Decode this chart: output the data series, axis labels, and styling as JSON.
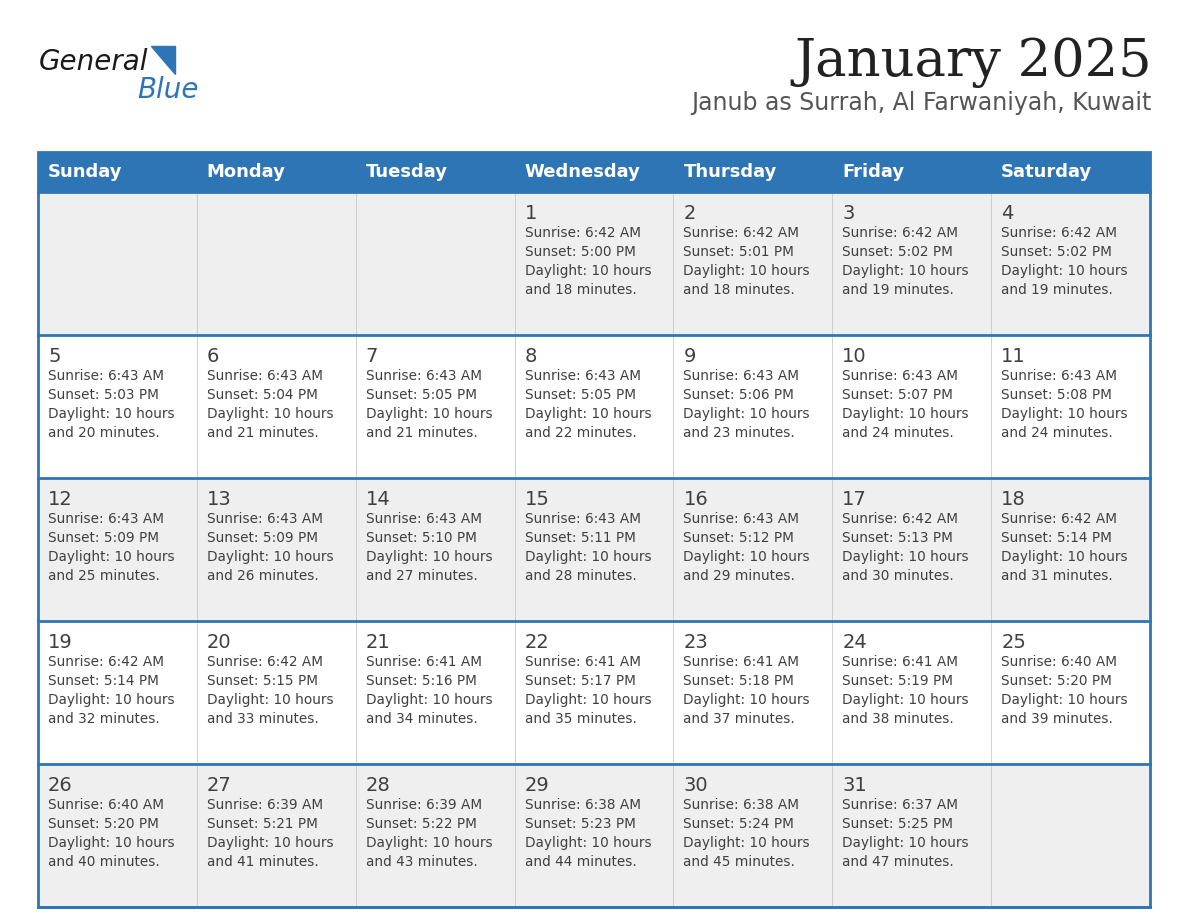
{
  "title": "January 2025",
  "subtitle": "Janub as Surrah, Al Farwaniyah, Kuwait",
  "days_of_week": [
    "Sunday",
    "Monday",
    "Tuesday",
    "Wednesday",
    "Thursday",
    "Friday",
    "Saturday"
  ],
  "header_bg": "#2E75B6",
  "header_text": "#FFFFFF",
  "cell_bg_light": "#EFEFEF",
  "cell_bg_white": "#FFFFFF",
  "row_line_color": "#2E75B6",
  "text_color": "#404040",
  "title_color": "#222222",
  "subtitle_color": "#555555",
  "logo_general_color": "#1a1a1a",
  "logo_blue_color": "#2E75B6",
  "weeks": [
    [
      {
        "day": null,
        "info": null
      },
      {
        "day": null,
        "info": null
      },
      {
        "day": null,
        "info": null
      },
      {
        "day": "1",
        "info": "Sunrise: 6:42 AM\nSunset: 5:00 PM\nDaylight: 10 hours\nand 18 minutes."
      },
      {
        "day": "2",
        "info": "Sunrise: 6:42 AM\nSunset: 5:01 PM\nDaylight: 10 hours\nand 18 minutes."
      },
      {
        "day": "3",
        "info": "Sunrise: 6:42 AM\nSunset: 5:02 PM\nDaylight: 10 hours\nand 19 minutes."
      },
      {
        "day": "4",
        "info": "Sunrise: 6:42 AM\nSunset: 5:02 PM\nDaylight: 10 hours\nand 19 minutes."
      }
    ],
    [
      {
        "day": "5",
        "info": "Sunrise: 6:43 AM\nSunset: 5:03 PM\nDaylight: 10 hours\nand 20 minutes."
      },
      {
        "day": "6",
        "info": "Sunrise: 6:43 AM\nSunset: 5:04 PM\nDaylight: 10 hours\nand 21 minutes."
      },
      {
        "day": "7",
        "info": "Sunrise: 6:43 AM\nSunset: 5:05 PM\nDaylight: 10 hours\nand 21 minutes."
      },
      {
        "day": "8",
        "info": "Sunrise: 6:43 AM\nSunset: 5:05 PM\nDaylight: 10 hours\nand 22 minutes."
      },
      {
        "day": "9",
        "info": "Sunrise: 6:43 AM\nSunset: 5:06 PM\nDaylight: 10 hours\nand 23 minutes."
      },
      {
        "day": "10",
        "info": "Sunrise: 6:43 AM\nSunset: 5:07 PM\nDaylight: 10 hours\nand 24 minutes."
      },
      {
        "day": "11",
        "info": "Sunrise: 6:43 AM\nSunset: 5:08 PM\nDaylight: 10 hours\nand 24 minutes."
      }
    ],
    [
      {
        "day": "12",
        "info": "Sunrise: 6:43 AM\nSunset: 5:09 PM\nDaylight: 10 hours\nand 25 minutes."
      },
      {
        "day": "13",
        "info": "Sunrise: 6:43 AM\nSunset: 5:09 PM\nDaylight: 10 hours\nand 26 minutes."
      },
      {
        "day": "14",
        "info": "Sunrise: 6:43 AM\nSunset: 5:10 PM\nDaylight: 10 hours\nand 27 minutes."
      },
      {
        "day": "15",
        "info": "Sunrise: 6:43 AM\nSunset: 5:11 PM\nDaylight: 10 hours\nand 28 minutes."
      },
      {
        "day": "16",
        "info": "Sunrise: 6:43 AM\nSunset: 5:12 PM\nDaylight: 10 hours\nand 29 minutes."
      },
      {
        "day": "17",
        "info": "Sunrise: 6:42 AM\nSunset: 5:13 PM\nDaylight: 10 hours\nand 30 minutes."
      },
      {
        "day": "18",
        "info": "Sunrise: 6:42 AM\nSunset: 5:14 PM\nDaylight: 10 hours\nand 31 minutes."
      }
    ],
    [
      {
        "day": "19",
        "info": "Sunrise: 6:42 AM\nSunset: 5:14 PM\nDaylight: 10 hours\nand 32 minutes."
      },
      {
        "day": "20",
        "info": "Sunrise: 6:42 AM\nSunset: 5:15 PM\nDaylight: 10 hours\nand 33 minutes."
      },
      {
        "day": "21",
        "info": "Sunrise: 6:41 AM\nSunset: 5:16 PM\nDaylight: 10 hours\nand 34 minutes."
      },
      {
        "day": "22",
        "info": "Sunrise: 6:41 AM\nSunset: 5:17 PM\nDaylight: 10 hours\nand 35 minutes."
      },
      {
        "day": "23",
        "info": "Sunrise: 6:41 AM\nSunset: 5:18 PM\nDaylight: 10 hours\nand 37 minutes."
      },
      {
        "day": "24",
        "info": "Sunrise: 6:41 AM\nSunset: 5:19 PM\nDaylight: 10 hours\nand 38 minutes."
      },
      {
        "day": "25",
        "info": "Sunrise: 6:40 AM\nSunset: 5:20 PM\nDaylight: 10 hours\nand 39 minutes."
      }
    ],
    [
      {
        "day": "26",
        "info": "Sunrise: 6:40 AM\nSunset: 5:20 PM\nDaylight: 10 hours\nand 40 minutes."
      },
      {
        "day": "27",
        "info": "Sunrise: 6:39 AM\nSunset: 5:21 PM\nDaylight: 10 hours\nand 41 minutes."
      },
      {
        "day": "28",
        "info": "Sunrise: 6:39 AM\nSunset: 5:22 PM\nDaylight: 10 hours\nand 43 minutes."
      },
      {
        "day": "29",
        "info": "Sunrise: 6:38 AM\nSunset: 5:23 PM\nDaylight: 10 hours\nand 44 minutes."
      },
      {
        "day": "30",
        "info": "Sunrise: 6:38 AM\nSunset: 5:24 PM\nDaylight: 10 hours\nand 45 minutes."
      },
      {
        "day": "31",
        "info": "Sunrise: 6:37 AM\nSunset: 5:25 PM\nDaylight: 10 hours\nand 47 minutes."
      },
      {
        "day": null,
        "info": null
      }
    ]
  ]
}
